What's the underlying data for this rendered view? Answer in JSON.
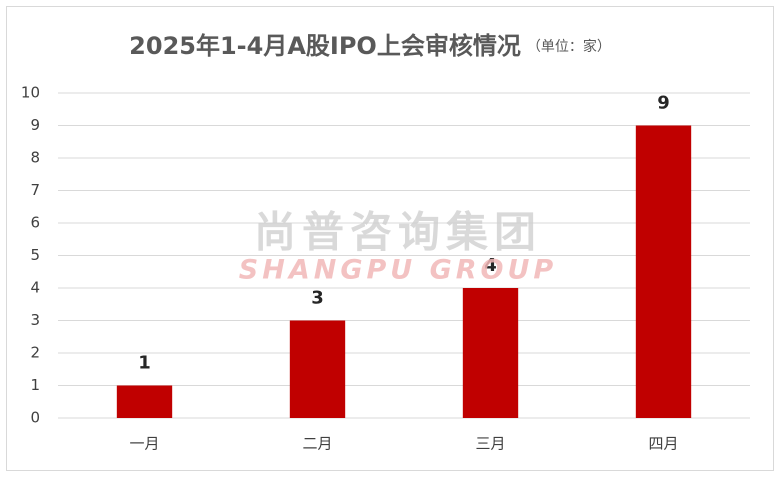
{
  "chart_data": {
    "type": "bar",
    "title": "2025年1-4月A股IPO上会审核情况",
    "subtitle": "（单位：家）",
    "watermark": [
      "尚普咨询集团",
      "SHANGPU GROUP"
    ],
    "categories": [
      "一月",
      "二月",
      "三月",
      "四月"
    ],
    "values": [
      1,
      3,
      4,
      9
    ],
    "color": "#c00000",
    "ylim": [
      0,
      10
    ],
    "yticks": [
      0,
      1,
      2,
      3,
      4,
      5,
      6,
      7,
      8,
      9,
      10
    ],
    "grid": true
  }
}
